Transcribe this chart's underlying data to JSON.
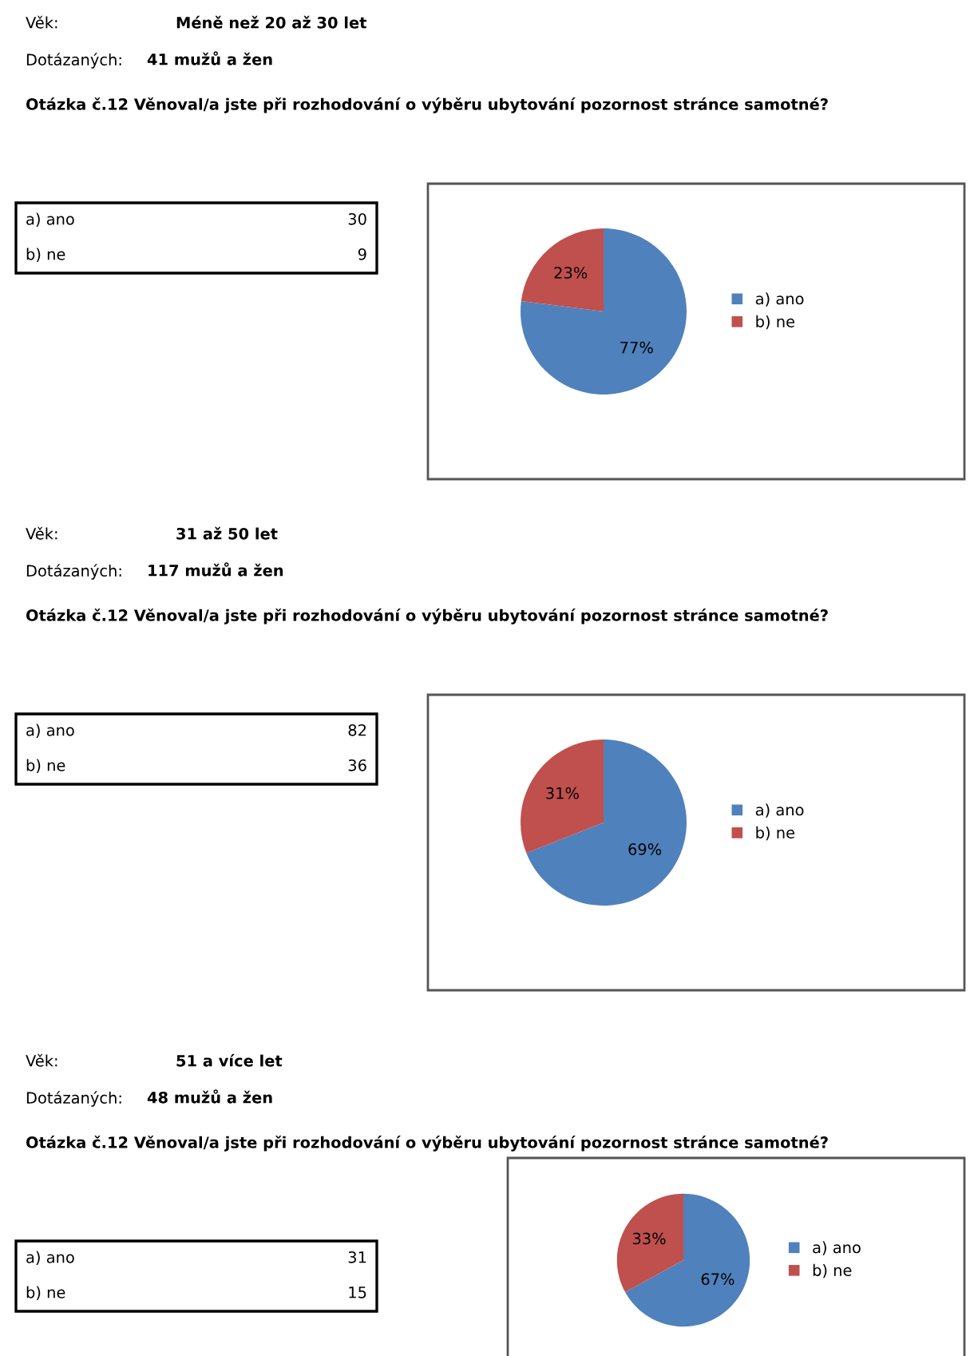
{
  "chart_data": [
    {
      "type": "pie",
      "title": "Otázka č.12 Věnoval/a jste při rozhodování o výběru ubytování pozornost stránce samotné?",
      "categories": [
        "a) ano",
        "b) ne"
      ],
      "values": [
        77,
        23
      ],
      "value_labels": [
        "77%",
        "23%"
      ],
      "colors": [
        "#4f81bd",
        "#c0504d"
      ],
      "legend": "right",
      "annotations": [
        "Věk:",
        "Méně než 20 až 30 let",
        "Dotázaných:",
        "41 mužů a žen",
        "a) ano",
        "30",
        "b) ne",
        "9"
      ]
    },
    {
      "type": "pie",
      "title": "Otázka č.12 Věnoval/a jste při rozhodování o výběru ubytování pozornost stránce samotné?",
      "categories": [
        "a) ano",
        "b) ne"
      ],
      "values": [
        69,
        31
      ],
      "value_labels": [
        "69%",
        "31%"
      ],
      "colors": [
        "#4f81bd",
        "#c0504d"
      ],
      "legend": "right",
      "annotations": [
        "Věk:",
        "31 až 50 let",
        "Dotázaných:",
        "117 mužů a žen",
        "a) ano",
        "82",
        "b) ne",
        "36"
      ]
    },
    {
      "type": "pie",
      "title": "Otázka č.12 Věnoval/a jste při rozhodování o výběru ubytování pozornost stránce samotné?",
      "categories": [
        "a) ano",
        "b) ne"
      ],
      "values": [
        67,
        33
      ],
      "value_labels": [
        "67%",
        "33%"
      ],
      "colors": [
        "#4f81bd",
        "#c0504d"
      ],
      "legend": "right",
      "annotations": [
        "Věk:",
        "51 a více let",
        "Dotázaných:",
        "48 mužů a žen",
        "a) ano",
        "31",
        "b) ne",
        "15"
      ]
    }
  ]
}
